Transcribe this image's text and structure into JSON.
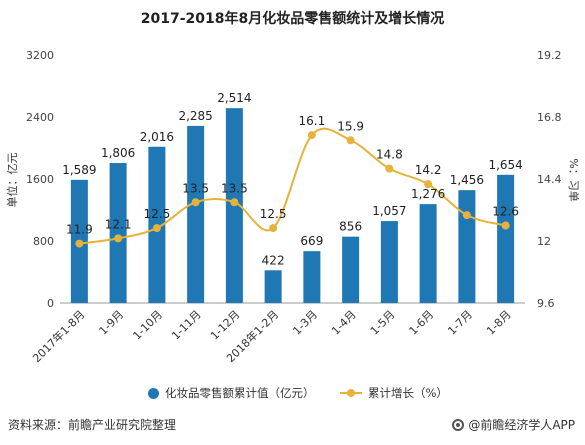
{
  "chart_data": {
    "type": "bar+line",
    "title": "2017-2018年8月化妆品零售额统计及增长情况",
    "categories": [
      "2017年1-8月",
      "1-9月",
      "1-10月",
      "1-11月",
      "1-12月",
      "2018年1-2月",
      "1-3月",
      "1-4月",
      "1-5月",
      "1-6月",
      "1-7月",
      "1-8月"
    ],
    "series": [
      {
        "name": "化妆品零售额累计值（亿元）",
        "type": "bar",
        "axis": "left",
        "color": "#1f78b4",
        "values": [
          1589,
          1806,
          2016,
          2285,
          2514,
          422,
          669,
          856,
          1057,
          1276,
          1456,
          1654
        ],
        "labels": [
          "1,589",
          "1,806",
          "2,016",
          "2,285",
          "2,514",
          "422",
          "669",
          "856",
          "1,057",
          "1,276",
          "1,456",
          "1,654"
        ]
      },
      {
        "name": "累计增长（%）",
        "type": "line",
        "axis": "right",
        "color": "#e6b23c",
        "values": [
          11.9,
          12.1,
          12.5,
          13.5,
          13.5,
          12.5,
          16.1,
          15.9,
          14.8,
          14.2,
          13.0,
          12.6
        ],
        "labels": [
          "11.9",
          "12.1",
          "12.5",
          "13.5",
          "13.5",
          "12.5",
          "16.1",
          "15.9",
          "14.8",
          "14.2",
          "",
          "12.6"
        ]
      }
    ],
    "ylabel": "单位：亿元",
    "ylabel_right": "%：习单",
    "ylim": [
      0,
      3200
    ],
    "yticks": [
      "0",
      "800",
      "1600",
      "2400",
      "3200"
    ],
    "ylim_right": [
      9.6,
      19.2
    ],
    "yticks_right": [
      "9.6",
      "12",
      "14.4",
      "16.8",
      "19.2"
    ],
    "grid": false,
    "legend_position": "bottom"
  },
  "footer": {
    "source": "资料来源：前瞻产业研究院整理",
    "brand": "@前瞻经济学人APP",
    "brand_icon": "circle-logo-icon"
  }
}
